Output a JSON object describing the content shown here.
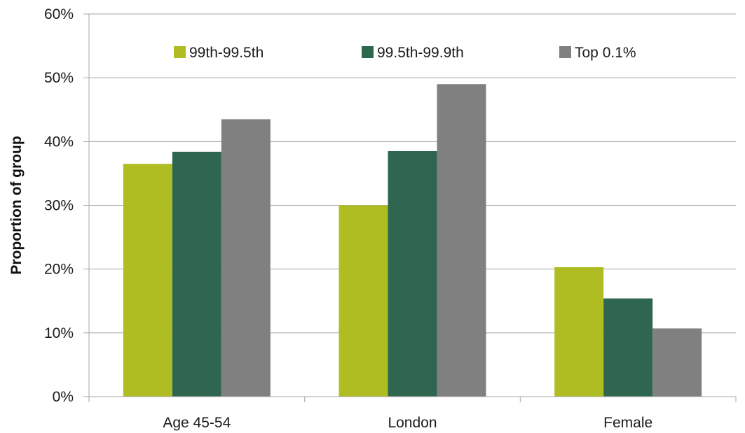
{
  "chart_data": {
    "type": "bar",
    "categories": [
      "Age 45-54",
      "London",
      "Female"
    ],
    "series": [
      {
        "name": "99th-99.5th",
        "values": [
          36.5,
          30.0,
          20.3
        ],
        "color": "#afbd22"
      },
      {
        "name": "99.5th-99.9th",
        "values": [
          38.4,
          38.5,
          15.4
        ],
        "color": "#2f6650"
      },
      {
        "name": "Top 0.1%",
        "values": [
          43.5,
          49.0,
          10.7
        ],
        "color": "#808080"
      }
    ],
    "title": "",
    "xlabel": "",
    "ylabel": "Proportion of group",
    "ylim": [
      0,
      60
    ],
    "yticks": [
      0,
      10,
      20,
      30,
      40,
      50,
      60
    ],
    "ytick_labels": [
      "0%",
      "10%",
      "20%",
      "30%",
      "40%",
      "50%",
      "60%"
    ],
    "grid": true,
    "legend_position": "top"
  }
}
